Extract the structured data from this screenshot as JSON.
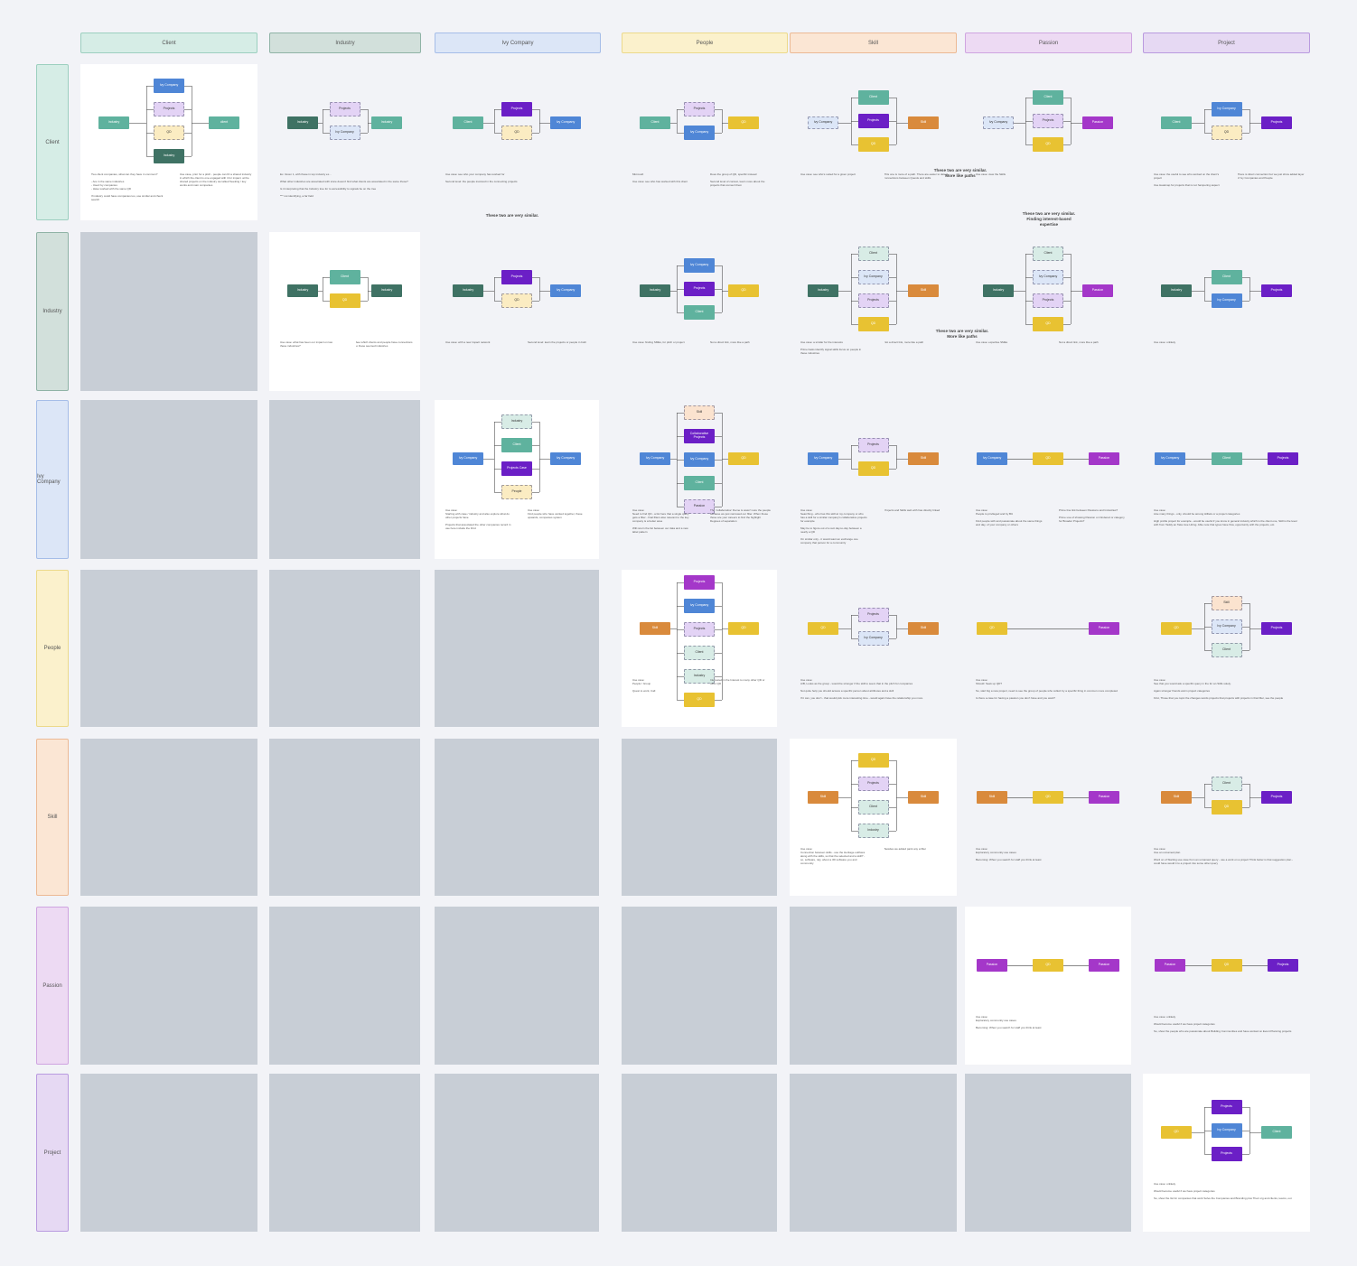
{
  "columns": [
    {
      "label": "Client",
      "color": "#d6ede6",
      "border": "#9ccfbf"
    },
    {
      "label": "Industry",
      "color": "#d2e0db",
      "border": "#8fb3a6"
    },
    {
      "label": "Ivy Company",
      "color": "#dce6f7",
      "border": "#a5bde8"
    },
    {
      "label": "People",
      "color": "#fbf1cc",
      "border": "#ecd98a"
    },
    {
      "label": "Skill",
      "color": "#fbe6d4",
      "border": "#ecb994"
    },
    {
      "label": "Passion",
      "color": "#eddaf3",
      "border": "#cfa4e0"
    },
    {
      "label": "Project",
      "color": "#e6d9f3",
      "border": "#b99adf"
    }
  ],
  "rows": [
    {
      "label": "Client",
      "color": "#d6ede6",
      "border": "#9ccfbf"
    },
    {
      "label": "Industry",
      "color": "#d2e0db",
      "border": "#8fb3a6"
    },
    {
      "label": "Ivy Company",
      "color": "#dce6f7",
      "border": "#a5bde8"
    },
    {
      "label": "People",
      "color": "#fbf1cc",
      "border": "#ecd98a"
    },
    {
      "label": "Skill",
      "color": "#fbe6d4",
      "border": "#ecb994"
    },
    {
      "label": "Passion",
      "color": "#eddaf3",
      "border": "#cfa4e0"
    },
    {
      "label": "Project",
      "color": "#e6d9f3",
      "border": "#b99adf"
    }
  ],
  "palette": {
    "client": "#5fb29e",
    "industry": "#3f7264",
    "ivy": "#4f86d6",
    "project": "#6b1fc6",
    "people": "#e8c232",
    "skill": "#d98a3c",
    "passion": "#a437c9",
    "project_dashed": "#e3d3f5",
    "ivy_light": "#dce6f7",
    "client_light": "#d8ece6",
    "people_light": "#fbecc2",
    "skill_light": "#fbe3cf"
  },
  "cells": [
    {
      "nodes": [
        {
          "t": "Industry",
          "c": "client"
        },
        {
          "t": "Ivy Company",
          "c": "ivy"
        },
        {
          "t": "Projects",
          "c": "project_dashed"
        },
        {
          "t": "QD",
          "c": "people_light"
        },
        {
          "t": "Industry",
          "c": "industry"
        },
        {
          "t": "client",
          "c": "client"
        }
      ],
      "notes": [
        "Two client companies, what can they have in common?\n\n- Are in the same industries\n- Used Ivy companies\n- Have worked with the same QD\n\nIf industry could have companies too, use similar and check search",
        "Use case, prior for a pitch - people can ID a shared industry in which the client is one engaged with it for impact, at the shared projects on the industry we talked Seeking / key works and main companies"
      ]
    },
    {
      "nodes": [
        {
          "t": "Industry",
          "c": "industry"
        },
        {
          "t": "Projects",
          "c": "project_dashed"
        },
        {
          "t": "Ivy Company",
          "c": "ivy_light"
        },
        {
          "t": "Industry",
          "c": "client"
        }
      ],
      "notes": [
        "Ex. Given 1, with these in top industry ex...\n\nWhat other industries are associated with since doesn't find what clients are associated in the same those?\n\nIs it interpreting that the Industry tree for to accessibility to signals be on the tree\n\n*** not identifying, a far field"
      ]
    },
    {
      "nodes": [
        {
          "t": "Client",
          "c": "client"
        },
        {
          "t": "Projects",
          "c": "project"
        },
        {
          "t": "QD",
          "c": "people_light"
        },
        {
          "t": "Ivy Company",
          "c": "ivy"
        }
      ],
      "notes": [
        "Use case: see who your company has worked for\n\nSecond level: the people involved in the connecting projects"
      ]
    },
    {
      "nodes": [
        {
          "t": "Client",
          "c": "client"
        },
        {
          "t": "Projects",
          "c": "project_dashed"
        },
        {
          "t": "Ivy Company",
          "c": "ivy"
        },
        {
          "t": "QD",
          "c": "people"
        }
      ],
      "notes": [
        "Microsoft\n\nUse case: see who has worked with this client",
        "Does the group of QD, specific instead\n\nSecond level of context, learn more about the projects that connect them"
      ]
    },
    {
      "nodes": [
        {
          "t": "Ivy Company",
          "c": "ivy_light"
        },
        {
          "t": "Client",
          "c": "client"
        },
        {
          "t": "Projects",
          "c": "project"
        },
        {
          "t": "QD",
          "c": "people"
        },
        {
          "t": "Skill",
          "c": "skill"
        }
      ],
      "notes": [
        "Use case: see who's suited for a given project",
        "This one is more of a path. There are easier to detect connections between Quests and skills"
      ]
    },
    {
      "nodes": [
        {
          "t": "Ivy Company",
          "c": "ivy_light"
        },
        {
          "t": "Client",
          "c": "client"
        },
        {
          "t": "Projects",
          "c": "project_dashed"
        },
        {
          "t": "QD",
          "c": "people"
        },
        {
          "t": "Passion",
          "c": "passion"
        }
      ],
      "notes": [
        "Use case: view the Skills"
      ]
    },
    {
      "nodes": [
        {
          "t": "Client",
          "c": "client"
        },
        {
          "t": "Ivy Company",
          "c": "ivy"
        },
        {
          "t": "QD",
          "c": "people_light"
        },
        {
          "t": "Projects",
          "c": "project"
        }
      ],
      "notes": [
        "Use case: the useful to see who worked on the client's project\n\nUse Heatmap for projects that is not hampering aspect",
        "There is direct connection but we just show added layer of Ivy Companies and People"
      ]
    },
    {
      "nodes": [
        {
          "t": "Industry",
          "c": "industry"
        },
        {
          "t": "Client",
          "c": "client"
        },
        {
          "t": "QD",
          "c": "people"
        },
        {
          "t": "Industry",
          "c": "industry"
        }
      ],
      "notes": [
        "Use case: what has been our impact on two these industries?",
        "See which clients and people have connections to these seemed industries"
      ]
    },
    {
      "nodes": [
        {
          "t": "Industry",
          "c": "industry"
        },
        {
          "t": "Projects",
          "c": "project"
        },
        {
          "t": "QD",
          "c": "people_light"
        },
        {
          "t": "Ivy Company",
          "c": "ivy"
        }
      ],
      "notes": [
        "Use case: with a new impact network",
        "Second level: learn the projects or people in both"
      ]
    },
    {
      "nodes": [
        {
          "t": "Industry",
          "c": "industry"
        },
        {
          "t": "Ivy Company",
          "c": "ivy"
        },
        {
          "t": "Projects",
          "c": "project"
        },
        {
          "t": "Client",
          "c": "client"
        },
        {
          "t": "QD",
          "c": "people"
        }
      ],
      "notes": [
        "Use case: finding SMEs, for pitch or project",
        "Not a direct link, more like a path"
      ]
    },
    {
      "nodes": [
        {
          "t": "Industry",
          "c": "industry"
        },
        {
          "t": "Client",
          "c": "client_light"
        },
        {
          "t": "Ivy Company",
          "c": "ivy_light"
        },
        {
          "t": "Projects",
          "c": "project_dashed"
        },
        {
          "t": "QD",
          "c": "people"
        },
        {
          "t": "Skill",
          "c": "skill"
        }
      ],
      "notes": [
        "Use case: a similar for the interests\n\nPrime basis identify signal skills focus on people in these industries",
        "Not a direct link, more like a path"
      ]
    },
    {
      "nodes": [
        {
          "t": "Industry",
          "c": "industry"
        },
        {
          "t": "Client",
          "c": "client_light"
        },
        {
          "t": "Ivy Company",
          "c": "ivy_light"
        },
        {
          "t": "Projects",
          "c": "project_dashed"
        },
        {
          "t": "QD",
          "c": "people"
        },
        {
          "t": "Passion",
          "c": "passion"
        }
      ],
      "notes": [
        "Use case: expertise SMEs",
        "Not a direct link, more like a path"
      ]
    },
    {
      "nodes": [
        {
          "t": "Industry",
          "c": "industry"
        },
        {
          "t": "Client",
          "c": "client"
        },
        {
          "t": "Ivy Company",
          "c": "ivy"
        },
        {
          "t": "Projects",
          "c": "project"
        }
      ],
      "notes": [
        "Use case: unlikely"
      ]
    },
    {
      "nodes": [
        {
          "t": "Ivy Company",
          "c": "ivy"
        },
        {
          "t": "Industry",
          "c": "client_light"
        },
        {
          "t": "Client",
          "c": "client"
        },
        {
          "t": "Projects Case",
          "c": "project"
        },
        {
          "t": "People",
          "c": "people_light"
        },
        {
          "t": "Ivy Company",
          "c": "ivy"
        }
      ],
      "notes": [
        "Use case:\nStarting with case / industry and also explore what do other projects have\n\nProjects that associated the other companies record in use here include the third",
        "Use case:\nFind people who have worked together, these upwards, companies system"
      ]
    },
    {
      "nodes": [
        {
          "t": "Ivy Company",
          "c": "ivy"
        },
        {
          "t": "Skill",
          "c": "skill_light"
        },
        {
          "t": "Collaborative Projects",
          "c": "project"
        },
        {
          "t": "Ivy Company",
          "c": "ivy"
        },
        {
          "t": "Client",
          "c": "client"
        },
        {
          "t": "Passion",
          "c": "project_dashed"
        },
        {
          "t": "QD",
          "c": "people"
        }
      ],
      "notes": [
        "Use case:\nNeed to find QD - a list here that a single query gets a filter - final filters also relevant to the key company is a better area\n\nWill return the list between our data and a new label pattern",
        "The 'collaborative' theme is wasn't sure the people because we just narrowed our filter. When these those are your careers to find the highlight\nDegrees of separation"
      ]
    },
    {
      "nodes": [
        {
          "t": "Ivy Company",
          "c": "ivy"
        },
        {
          "t": "Projects",
          "c": "project_dashed"
        },
        {
          "t": "QD",
          "c": "people"
        },
        {
          "t": "Skill",
          "c": "skill"
        }
      ],
      "notes": [
        "Use case:\nSearching - who has this skill at my company or who has a skill for a similar company's collaborative projects for example\n\nMay be to figure out of a suit day-to-day between a nearly a QD\n\nOn similar only - it would want an exchange one company that person for a community",
        "Projects and Skills web with has directly linked"
      ]
    },
    {
      "nodes": [
        {
          "t": "Ivy Company",
          "c": "ivy"
        },
        {
          "t": "QD",
          "c": "people"
        },
        {
          "t": "Passion",
          "c": "passion"
        }
      ],
      "notes": [
        "Use case:\nPeople to privileged and by BU\n\nFind people with and passionate about the same things and day, of your company or others",
        "Prime line link between Passions and Industries?\n\nPrime use of showing Passion on hindered or category for Broader Projects?"
      ]
    },
    {
      "nodes": [
        {
          "t": "Ivy Company",
          "c": "ivy"
        },
        {
          "t": "Client",
          "c": "client"
        },
        {
          "t": "Projects",
          "c": "project"
        }
      ],
      "notes": [
        "Use case:\nLike many things - only, should be among Hilltels or a project categories\n\nHigh profile project for example - would be useful if you know in general industry which is the client one, Skill is the level with from Taddy an Take love Hiring. Able note that types have flow, opportunity with the projects, etc."
      ]
    },
    {
      "nodes": [
        {
          "t": "Skill",
          "c": "skill"
        },
        {
          "t": "Projects",
          "c": "passion"
        },
        {
          "t": "Ivy Company",
          "c": "ivy"
        },
        {
          "t": "Projects",
          "c": "project_dashed"
        },
        {
          "t": "Client",
          "c": "client_light"
        },
        {
          "t": "Industry",
          "c": "client_light"
        },
        {
          "t": "QD",
          "c": "people"
        },
        {
          "t": "QD",
          "c": "people"
        }
      ],
      "notes": [
        "Use case:\nPeople / Group\n\nQuest to work, Call",
        "Interested in the Interest to many other QD or other QD"
      ]
    },
    {
      "nodes": [
        {
          "t": "QD",
          "c": "people"
        },
        {
          "t": "Projects",
          "c": "project_dashed"
        },
        {
          "t": "Ivy Company",
          "c": "ivy_light"
        },
        {
          "t": "Skill",
          "c": "skill"
        }
      ],
      "notes": [
        "Use case:\nA/B, Looks as the group - would be stronger if the skill to seem that in the pitch for companies\n\nNot quite help you should access a specific person about attributes and a skill\n\nIf it can, you don't - that would pick more interesting time - would again have the relationship you more"
      ]
    },
    {
      "nodes": [
        {
          "t": "QD",
          "c": "people"
        },
        {
          "t": "Passion",
          "c": "passion"
        }
      ],
      "notes": [
        "Use case:\nShould: Seek up QD?\n\nSo, start big a new project, need to see the group of people who collect by a specific thing in common more completed\n\nIs there a case for having a passion you don't have and you want?"
      ]
    },
    {
      "nodes": [
        {
          "t": "QD",
          "c": "people"
        },
        {
          "t": "Skill",
          "c": "skill_light"
        },
        {
          "t": "Ivy Company",
          "c": "ivy_light"
        },
        {
          "t": "Client",
          "c": "client_light"
        },
        {
          "t": "Projects",
          "c": "project"
        }
      ],
      "notes": [
        "Use case:\nSee that you would ask a specific query in the for an Stills solely.\n\nAgain stronger friends warm project categories\n\nFirst, Those that you topic the changes words projects that projects with projects in that filter, see the people"
      ]
    },
    {
      "nodes": [
        {
          "t": "Skill",
          "c": "skill"
        },
        {
          "t": "QD",
          "c": "people"
        },
        {
          "t": "Projects",
          "c": "project_dashed"
        },
        {
          "t": "Client",
          "c": "client_light"
        },
        {
          "t": "Industry",
          "c": "client_light"
        },
        {
          "t": "Skill",
          "c": "skill"
        }
      ],
      "notes": [
        "Use case:\nConnection between skills - use the Heritage outflows along with the skills, so that the selected and a skill? - so, software, rely, about a 3D software you and community",
        "Besides we added paint any a filter"
      ]
    },
    {
      "nodes": [
        {
          "t": "Skill",
          "c": "skill"
        },
        {
          "t": "QD",
          "c": "people"
        },
        {
          "t": "Passion",
          "c": "passion"
        }
      ],
      "notes": [
        "Use case:\nExploratory community use cases\n\nBecoming: When you search for staff you think at least"
      ]
    },
    {
      "nodes": [
        {
          "t": "Skill",
          "c": "skill"
        },
        {
          "t": "Client",
          "c": "client_light"
        },
        {
          "t": "QD",
          "c": "people"
        },
        {
          "t": "Projects",
          "c": "project"
        }
      ],
      "notes": [
        "Use case:\nUse an unnamed plan\n\nWord on of Starting use case from an unnamed query - use a work on a project Think better is that suggestion plan - could have would it to a project into some other query"
      ]
    },
    {
      "nodes": [
        {
          "t": "Passion",
          "c": "passion"
        },
        {
          "t": "QD",
          "c": "people"
        },
        {
          "t": "Passion",
          "c": "passion"
        }
      ],
      "notes": [
        "Use case:\nExploratory community use cases\n\nBecoming: When you search for staff you think at least"
      ]
    },
    {
      "nodes": [
        {
          "t": "Passion",
          "c": "passion"
        },
        {
          "t": "QD",
          "c": "people"
        },
        {
          "t": "Projects",
          "c": "project"
        }
      ],
      "notes": [
        "Use case: unlikely\n\nWould become useful if we have project categories\n\nSo, show the people who are passionate about Building Communities and have worked on Event Planning projects"
      ]
    },
    {
      "nodes": [
        {
          "t": "QD",
          "c": "people"
        },
        {
          "t": "Projects",
          "c": "project"
        },
        {
          "t": "Ivy Company",
          "c": "ivy"
        },
        {
          "t": "Projects",
          "c": "project"
        },
        {
          "t": "Client",
          "c": "client"
        }
      ],
      "notes": [
        "Use case: unlikely\n\nWould become useful if we have project categories\n\nSo, show the list for companies that work Solve the Companies and Branding plus Their org and clients, teams, out"
      ]
    }
  ],
  "remarks": [
    "These two are very similar.",
    "These two are very similar.\nMore like paths",
    "These two are very similar.\nFinding interest-based\nexpertise",
    "These two are very similar.\nMore like paths"
  ]
}
